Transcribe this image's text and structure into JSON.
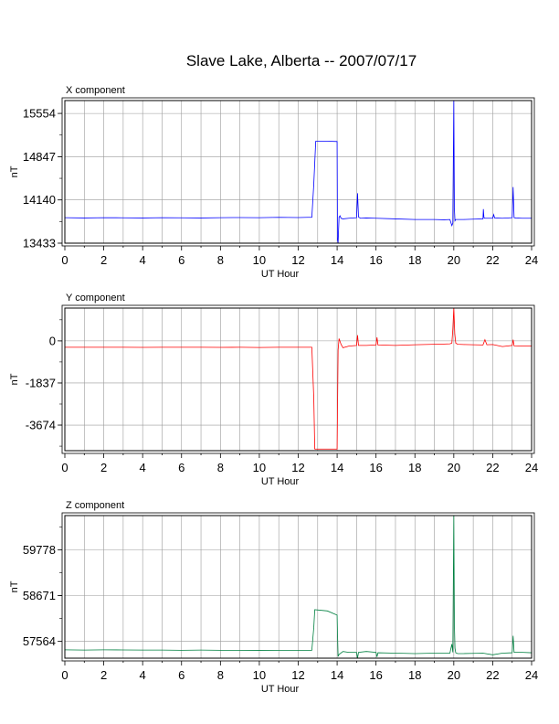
{
  "page_title": "Slave Lake, Alberta -- 2007/07/17",
  "chart_data": [
    {
      "type": "line",
      "title": "X component",
      "ylabel": "nT",
      "xlabel": "UT Hour",
      "xlim": [
        0,
        24
      ],
      "ylim": [
        13433,
        15765
      ],
      "x_ticks": [
        0,
        2,
        4,
        6,
        8,
        10,
        12,
        14,
        16,
        18,
        20,
        22,
        24
      ],
      "y_ticks": [
        13433,
        14140,
        14847,
        15554
      ],
      "grid": true,
      "color": "#0000ff",
      "series": [
        {
          "x": [
            0,
            1,
            2,
            3,
            4,
            5,
            6,
            7,
            8,
            9,
            10,
            11,
            12,
            12.5,
            12.7,
            12.8,
            12.9,
            13.5,
            14.0,
            14.02,
            14.05,
            14.1,
            14.15,
            14.2,
            14.3,
            14.6,
            15.0,
            15.05,
            15.1,
            15.2,
            15.5,
            16.0,
            17.0,
            18.0,
            19.0,
            19.5,
            19.8,
            19.9,
            19.95,
            20.0,
            20.03,
            20.06,
            20.1,
            20.2,
            20.5,
            21.0,
            21.5,
            21.52,
            21.55,
            21.6,
            22.0,
            22.05,
            22.1,
            22.5,
            23.0,
            23.05,
            23.1,
            23.2,
            23.5,
            24.0
          ],
          "y": [
            13850,
            13845,
            13850,
            13848,
            13845,
            13850,
            13848,
            13845,
            13850,
            13852,
            13850,
            13855,
            13852,
            13855,
            13855,
            14400,
            15100,
            15100,
            15095,
            13490,
            13440,
            13860,
            13880,
            13840,
            13830,
            13840,
            13850,
            14250,
            13860,
            13840,
            13845,
            13840,
            13830,
            13820,
            13820,
            13815,
            13820,
            13720,
            13760,
            15765,
            14000,
            13800,
            13820,
            13820,
            13820,
            13825,
            13830,
            13990,
            13850,
            13840,
            13840,
            13900,
            13845,
            13840,
            13850,
            14350,
            13850,
            13845,
            13840,
            13840
          ]
        }
      ]
    },
    {
      "type": "line",
      "title": "Y component",
      "ylabel": "nT",
      "xlabel": "UT Hour",
      "xlim": [
        0,
        24
      ],
      "ylim": [
        -4789,
        1430
      ],
      "x_ticks": [
        0,
        2,
        4,
        6,
        8,
        10,
        12,
        14,
        16,
        18,
        20,
        22,
        24
      ],
      "y_ticks": [
        -3674,
        -1837,
        0
      ],
      "grid": true,
      "color": "#ff0000",
      "series": [
        {
          "x": [
            0,
            1,
            2,
            3,
            4,
            5,
            6,
            7,
            8,
            9,
            10,
            11,
            12,
            12.5,
            12.7,
            12.8,
            12.85,
            13.5,
            14.0,
            14.05,
            14.1,
            14.2,
            14.3,
            14.6,
            15.0,
            15.05,
            15.1,
            15.5,
            16.0,
            16.05,
            16.1,
            17.0,
            18.0,
            19.0,
            19.5,
            19.8,
            19.9,
            19.95,
            20.0,
            20.05,
            20.1,
            20.2,
            20.5,
            21.0,
            21.5,
            21.6,
            21.7,
            22.0,
            22.5,
            23.0,
            23.05,
            23.1,
            23.5,
            24.0
          ],
          "y": [
            -280,
            -280,
            -280,
            -280,
            -285,
            -280,
            -280,
            -280,
            -285,
            -280,
            -290,
            -280,
            -280,
            -280,
            -280,
            -2500,
            -4720,
            -4720,
            -4720,
            -400,
            100,
            -150,
            -300,
            -230,
            -200,
            250,
            -200,
            -200,
            -180,
            150,
            -180,
            -200,
            -170,
            -150,
            -140,
            -130,
            -100,
            500,
            1430,
            300,
            -100,
            -150,
            -160,
            -170,
            -180,
            50,
            -170,
            -160,
            -250,
            -200,
            50,
            -220,
            -230,
            -220
          ]
        }
      ]
    },
    {
      "type": "line",
      "title": "Z component",
      "ylabel": "nT",
      "xlabel": "UT Hour",
      "xlim": [
        0,
        24
      ],
      "ylim": [
        57159,
        60603
      ],
      "x_ticks": [
        0,
        2,
        4,
        6,
        8,
        10,
        12,
        14,
        16,
        18,
        20,
        22,
        24
      ],
      "y_ticks": [
        57564,
        58671,
        59778
      ],
      "grid": true,
      "color": "#008040",
      "series": [
        {
          "x": [
            0,
            1,
            2,
            3,
            4,
            5,
            6,
            7,
            8,
            9,
            10,
            11,
            12,
            12.5,
            12.7,
            12.8,
            12.85,
            13.5,
            14.0,
            14.02,
            14.05,
            14.1,
            14.3,
            14.6,
            15.0,
            15.05,
            15.1,
            15.5,
            16.0,
            16.05,
            16.1,
            17.0,
            18.0,
            19.0,
            19.5,
            19.8,
            19.9,
            19.95,
            20.0,
            20.03,
            20.06,
            20.1,
            20.2,
            20.5,
            21.0,
            21.5,
            22.0,
            22.5,
            23.0,
            23.05,
            23.1,
            23.5,
            24.0
          ],
          "y": [
            57360,
            57355,
            57360,
            57358,
            57355,
            57355,
            57350,
            57355,
            57350,
            57350,
            57345,
            57350,
            57350,
            57350,
            57350,
            57900,
            58330,
            58300,
            58200,
            57750,
            57200,
            57250,
            57320,
            57300,
            57300,
            57159,
            57300,
            57320,
            57300,
            57190,
            57290,
            57280,
            57270,
            57280,
            57280,
            57280,
            57500,
            57300,
            60603,
            58000,
            57400,
            57290,
            57270,
            57270,
            57275,
            57280,
            57240,
            57280,
            57290,
            57700,
            57300,
            57300,
            57290
          ]
        }
      ]
    }
  ]
}
